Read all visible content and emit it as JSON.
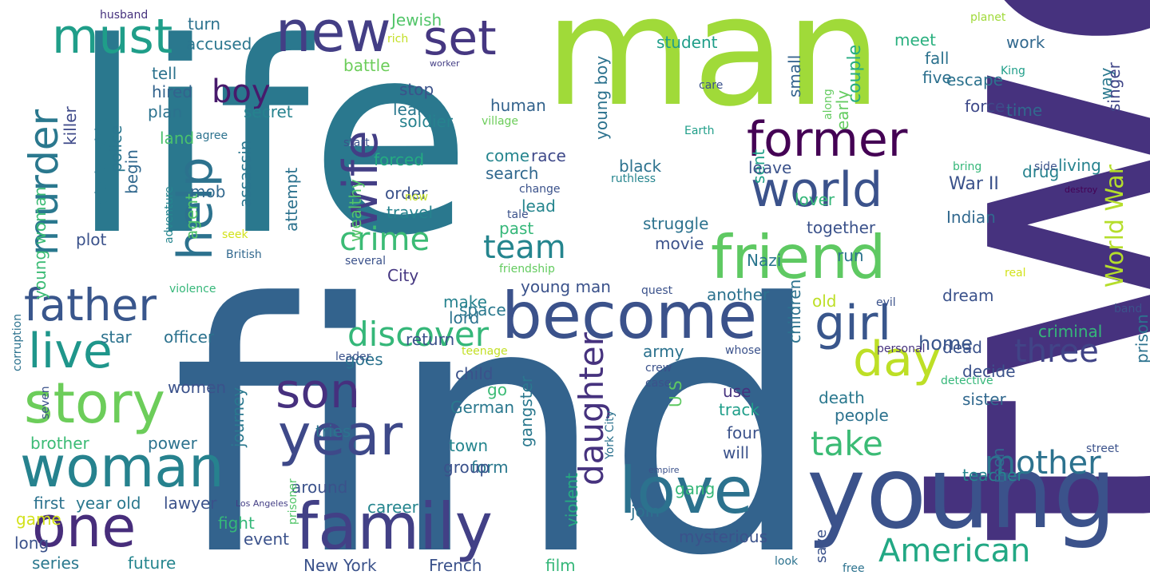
{
  "words": [
    {
      "text": "life",
      "color": "#2a788e"
    },
    {
      "text": "find",
      "color": "#33638d"
    },
    {
      "text": "two",
      "color": "#46327e"
    },
    {
      "text": "man",
      "color": "#a0da39"
    },
    {
      "text": "young",
      "color": "#3b528b"
    },
    {
      "text": "new",
      "color": "#433e85"
    },
    {
      "text": "must",
      "color": "#1f9e89"
    },
    {
      "text": "set",
      "color": "#453781"
    },
    {
      "text": "help",
      "color": "#2c728e"
    },
    {
      "text": "wife",
      "color": "#433e85"
    },
    {
      "text": "become",
      "color": "#3b528b"
    },
    {
      "text": "former",
      "color": "#440154"
    },
    {
      "text": "world",
      "color": "#3b528b"
    },
    {
      "text": "friend",
      "color": "#5ec962"
    },
    {
      "text": "family",
      "color": "#424086"
    },
    {
      "text": "love",
      "color": "#2c728e"
    },
    {
      "text": "father",
      "color": "#39568c"
    },
    {
      "text": "live",
      "color": "#1f968b"
    },
    {
      "text": "story",
      "color": "#6ccd5a"
    },
    {
      "text": "woman",
      "color": "#26828e"
    },
    {
      "text": "one",
      "color": "#472d7b"
    },
    {
      "text": "son",
      "color": "#46307e"
    },
    {
      "text": "year",
      "color": "#3e4989"
    },
    {
      "text": "girl",
      "color": "#39568c"
    },
    {
      "text": "day",
      "color": "#bddf26"
    },
    {
      "text": "murder",
      "color": "#2a788e"
    },
    {
      "text": "boy",
      "color": "#481a6c"
    },
    {
      "text": "crime",
      "color": "#3bbb75"
    },
    {
      "text": "team",
      "color": "#25858e"
    },
    {
      "text": "discover",
      "color": "#35b779"
    },
    {
      "text": "take",
      "color": "#3bbb75"
    },
    {
      "text": "daughter",
      "color": "#46327e"
    },
    {
      "text": "mother",
      "color": "#2c728e"
    },
    {
      "text": "American",
      "color": "#22a884"
    },
    {
      "text": "three",
      "color": "#414487"
    },
    {
      "text": "World War",
      "color": "#b5de2b"
    },
    {
      "text": "War II",
      "color": "#3b528b"
    },
    {
      "text": "home",
      "color": "#39568c"
    },
    {
      "text": "escape",
      "color": "#2c728e"
    },
    {
      "text": "way",
      "color": "#2a788e"
    },
    {
      "text": "singer",
      "color": "#404688"
    },
    {
      "text": "time",
      "color": "#31688e"
    },
    {
      "text": "force",
      "color": "#3e4989"
    },
    {
      "text": "five",
      "color": "#2d708e"
    },
    {
      "text": "fall",
      "color": "#2c728e"
    },
    {
      "text": "meet",
      "color": "#2ab07f"
    },
    {
      "text": "work",
      "color": "#31688e"
    },
    {
      "text": "couple",
      "color": "#26ad81"
    },
    {
      "text": "early",
      "color": "#63cb5f"
    },
    {
      "text": "small",
      "color": "#33638d"
    },
    {
      "text": "student",
      "color": "#1f9e89"
    },
    {
      "text": "young boy",
      "color": "#2c728e"
    },
    {
      "text": "accused",
      "color": "#2a768e"
    },
    {
      "text": "turn",
      "color": "#2c728e"
    },
    {
      "text": "Jewish",
      "color": "#52c569"
    },
    {
      "text": "husband",
      "color": "#46327e"
    },
    {
      "text": "planet",
      "color": "#a0da39"
    },
    {
      "text": "rich",
      "color": "#c2df23"
    },
    {
      "text": "worker",
      "color": "#433e85"
    },
    {
      "text": "battle",
      "color": "#6ccd5a"
    },
    {
      "text": "stop",
      "color": "#3b528b"
    },
    {
      "text": "learn",
      "color": "#2a788e"
    },
    {
      "text": "human",
      "color": "#33638d"
    },
    {
      "text": "soldier",
      "color": "#26828e"
    },
    {
      "text": "secret",
      "color": "#26828e"
    },
    {
      "text": "hired",
      "color": "#33638d"
    },
    {
      "text": "tell",
      "color": "#2c728e"
    },
    {
      "text": "plan",
      "color": "#2c728e"
    },
    {
      "text": "police",
      "color": "#2a768e"
    },
    {
      "text": "relationship",
      "color": "#2a788e"
    },
    {
      "text": "killer",
      "color": "#3e4989"
    },
    {
      "text": "agree",
      "color": "#2c728e"
    },
    {
      "text": "land",
      "color": "#4ac16d"
    },
    {
      "text": "mob",
      "color": "#31688e"
    },
    {
      "text": "begin",
      "color": "#31688e"
    },
    {
      "text": "assassin",
      "color": "#2a768e"
    },
    {
      "text": "attempt",
      "color": "#2c728e"
    },
    {
      "text": "agent",
      "color": "#52c569"
    },
    {
      "text": "young woman",
      "color": "#3bbb75"
    },
    {
      "text": "adventure",
      "color": "#25858e"
    },
    {
      "text": "seek",
      "color": "#d2e21b"
    },
    {
      "text": "British",
      "color": "#31688e"
    },
    {
      "text": "plot",
      "color": "#3b528b"
    },
    {
      "text": "forced",
      "color": "#25ab82"
    },
    {
      "text": "come",
      "color": "#25858e"
    },
    {
      "text": "race",
      "color": "#3e4989"
    },
    {
      "text": "search",
      "color": "#31688e"
    },
    {
      "text": "order",
      "color": "#3b528b"
    },
    {
      "text": "now",
      "color": "#c2df23"
    },
    {
      "text": "lead",
      "color": "#25858e"
    },
    {
      "text": "travel",
      "color": "#26828e"
    },
    {
      "text": "wealthy",
      "color": "#52c569"
    },
    {
      "text": "past",
      "color": "#35b779"
    },
    {
      "text": "City",
      "color": "#453781"
    },
    {
      "text": "black",
      "color": "#2c728e"
    },
    {
      "text": "ruthless",
      "color": "#25858e"
    },
    {
      "text": "struggle",
      "color": "#2c728e"
    },
    {
      "text": "movie",
      "color": "#3b528b"
    },
    {
      "text": "young man",
      "color": "#3b528b"
    },
    {
      "text": "space",
      "color": "#2a788e"
    },
    {
      "text": "make",
      "color": "#26828e"
    },
    {
      "text": "return",
      "color": "#3b528b"
    },
    {
      "text": "lord",
      "color": "#2c728e"
    },
    {
      "text": "another",
      "color": "#2c728e"
    },
    {
      "text": "sent",
      "color": "#1fa088"
    },
    {
      "text": "leave",
      "color": "#3b528b"
    },
    {
      "text": "lover",
      "color": "#35b779"
    },
    {
      "text": "drug",
      "color": "#26828e"
    },
    {
      "text": "living",
      "color": "#26828e"
    },
    {
      "text": "Indian",
      "color": "#31688e"
    },
    {
      "text": "together",
      "color": "#3b528b"
    },
    {
      "text": "Nazi",
      "color": "#2a768e"
    },
    {
      "text": "run",
      "color": "#2c728e"
    },
    {
      "text": "children",
      "color": "#2c728e"
    },
    {
      "text": "old",
      "color": "#bddf26"
    },
    {
      "text": "dream",
      "color": "#3b528b"
    },
    {
      "text": "criminal",
      "color": "#35b779"
    },
    {
      "text": "prison",
      "color": "#2c728e"
    },
    {
      "text": "dead",
      "color": "#3b528b"
    },
    {
      "text": "decide",
      "color": "#3b528b"
    },
    {
      "text": "sister",
      "color": "#31688e"
    },
    {
      "text": "death",
      "color": "#2a788e"
    },
    {
      "text": "people",
      "color": "#2c728e"
    },
    {
      "text": "teacher",
      "color": "#25858e"
    },
    {
      "text": "men",
      "color": "#31688e"
    },
    {
      "text": "save",
      "color": "#3b528b"
    },
    {
      "text": "use",
      "color": "#46327e"
    },
    {
      "text": "track",
      "color": "#1f9e89"
    },
    {
      "text": "four",
      "color": "#3b528b"
    },
    {
      "text": "will",
      "color": "#3b528b"
    },
    {
      "text": "U S",
      "color": "#5ec962"
    },
    {
      "text": "army",
      "color": "#2c728e"
    },
    {
      "text": "child",
      "color": "#3b528b"
    },
    {
      "text": "go",
      "color": "#3bbb75"
    },
    {
      "text": "German",
      "color": "#2a788e"
    },
    {
      "text": "town",
      "color": "#25858e"
    },
    {
      "text": "form",
      "color": "#2a788e"
    },
    {
      "text": "group",
      "color": "#3b528b"
    },
    {
      "text": "gangster",
      "color": "#2a788e"
    },
    {
      "text": "violent",
      "color": "#26ad81"
    },
    {
      "text": "goes",
      "color": "#2c728e"
    },
    {
      "text": "star",
      "color": "#2c728e"
    },
    {
      "text": "officer",
      "color": "#2c728e"
    },
    {
      "text": "women",
      "color": "#3b528b"
    },
    {
      "text": "journey",
      "color": "#2a788e"
    },
    {
      "text": "brother",
      "color": "#3bbb75"
    },
    {
      "text": "power",
      "color": "#2c728e"
    },
    {
      "text": "tries",
      "color": "#2c728e"
    },
    {
      "text": "around",
      "color": "#3b528b"
    },
    {
      "text": "career",
      "color": "#25858e"
    },
    {
      "text": "first",
      "color": "#2c728e"
    },
    {
      "text": "year old",
      "color": "#2a788e"
    },
    {
      "text": "lawyer",
      "color": "#3b528b"
    },
    {
      "text": "game",
      "color": "#d2e21b"
    },
    {
      "text": "fight",
      "color": "#35b779"
    },
    {
      "text": "event",
      "color": "#3b528b"
    },
    {
      "text": "long",
      "color": "#3b528b"
    },
    {
      "text": "series",
      "color": "#2a788e"
    },
    {
      "text": "future",
      "color": "#25858e"
    },
    {
      "text": "New York",
      "color": "#3b528b"
    },
    {
      "text": "French",
      "color": "#3b528b"
    },
    {
      "text": "film",
      "color": "#35b779"
    },
    {
      "text": "join",
      "color": "#2c728e"
    },
    {
      "text": "mysterious",
      "color": "#3b528b"
    },
    {
      "text": "gang",
      "color": "#35b779"
    },
    {
      "text": "prisoner",
      "color": "#52c569"
    },
    {
      "text": "Los Angeles",
      "color": "#433e85"
    },
    {
      "text": "York City",
      "color": "#2c728e"
    },
    {
      "text": "empire",
      "color": "#3b528b"
    },
    {
      "text": "crew",
      "color": "#3b528b"
    },
    {
      "text": "case",
      "color": "#3b528b"
    },
    {
      "text": "look",
      "color": "#2c728e"
    },
    {
      "text": "free",
      "color": "#2c728e"
    },
    {
      "text": "street",
      "color": "#3b528b"
    },
    {
      "text": "detective",
      "color": "#35b779"
    },
    {
      "text": "personal",
      "color": "#46327e"
    },
    {
      "text": "whose",
      "color": "#3b528b"
    },
    {
      "text": "evil",
      "color": "#3b528b"
    },
    {
      "text": "band",
      "color": "#3b528b"
    },
    {
      "text": "real",
      "color": "#d2e21b"
    },
    {
      "text": "destroy",
      "color": "#440154"
    },
    {
      "text": "bring",
      "color": "#35b779"
    },
    {
      "text": "side",
      "color": "#3b528b"
    },
    {
      "text": "King",
      "color": "#1f9e89"
    },
    {
      "text": "care",
      "color": "#3b528b"
    },
    {
      "text": "along",
      "color": "#63cb5f"
    },
    {
      "text": "Earth",
      "color": "#1f9e89"
    },
    {
      "text": "village",
      "color": "#6ccd5a"
    },
    {
      "text": "start",
      "color": "#3b528b"
    },
    {
      "text": "change",
      "color": "#3b528b"
    },
    {
      "text": "tale",
      "color": "#3b528b"
    },
    {
      "text": "several",
      "color": "#3b528b"
    },
    {
      "text": "friendship",
      "color": "#63cb5f"
    },
    {
      "text": "quest",
      "color": "#3b528b"
    },
    {
      "text": "violence",
      "color": "#35b779"
    },
    {
      "text": "corruption",
      "color": "#2c728e"
    },
    {
      "text": "leader",
      "color": "#3b528b"
    },
    {
      "text": "seven",
      "color": "#3b528b"
    },
    {
      "text": "teenage",
      "color": "#c2df23"
    }
  ]
}
